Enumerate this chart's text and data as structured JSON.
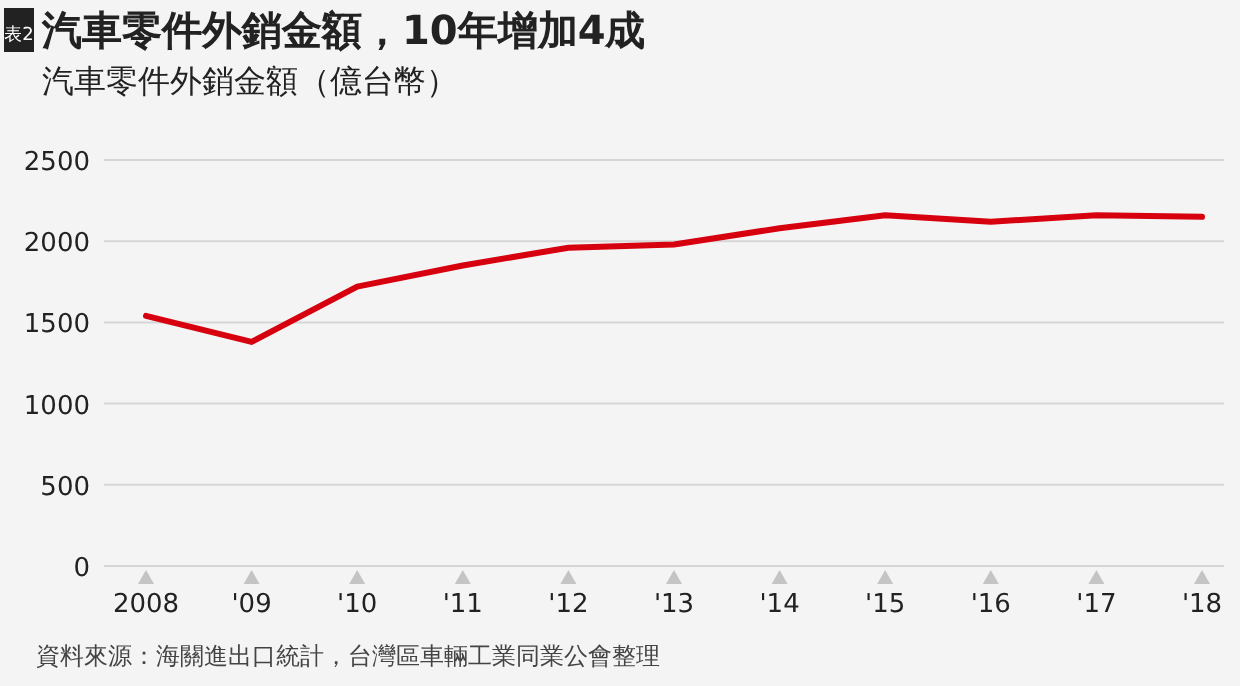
{
  "chart_data": {
    "type": "line",
    "title": "汽車零件外銷金額，10年增加4成",
    "ylabel": "汽車零件外銷金額（億台幣）",
    "categories": [
      "2008",
      "'09",
      "'10",
      "'11",
      "'12",
      "'13",
      "'14",
      "'15",
      "'16",
      "'17",
      "'18"
    ],
    "series": [
      {
        "color": "#d7000f",
        "values": [
          1540,
          1380,
          1720,
          1850,
          1960,
          1980,
          2080,
          2160,
          2120,
          2160,
          2150
        ]
      }
    ],
    "ylim": [
      0,
      2500
    ],
    "yticks": [
      0,
      500,
      1000,
      1500,
      2000,
      2500
    ],
    "grid": "y",
    "marker": "none",
    "line_style": "solid",
    "annotations": [
      "表2",
      "資料來源：海關進出口統計，台灣區車輛工業同業公會整理"
    ]
  }
}
